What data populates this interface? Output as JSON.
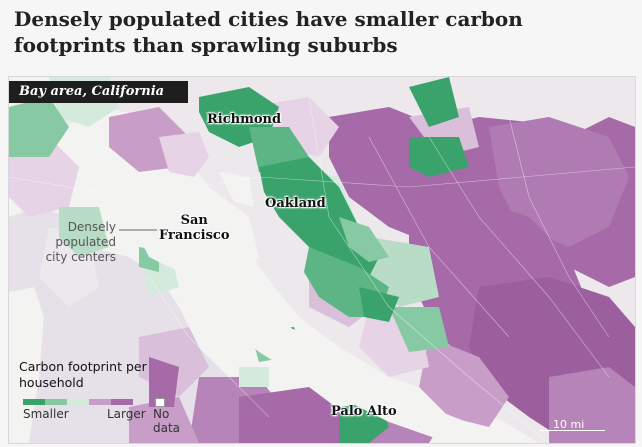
{
  "headline": "Densely populated cities have smaller carbon footprints than sprawling suburbs",
  "map": {
    "region_label": "Bay area, California",
    "cities": [
      {
        "id": "richmond",
        "name": "Richmond"
      },
      {
        "id": "oakland",
        "name": "Oakland"
      },
      {
        "id": "san-francisco",
        "name": "San\nFrancisco"
      },
      {
        "id": "palo-alto",
        "name": "Palo Alto"
      }
    ],
    "annotation": "Densely\npopulated\ncity centers",
    "scale_label": "10 mi"
  },
  "legend": {
    "title": "Carbon footprint per household",
    "low_label": "Smaller",
    "high_label": "Larger",
    "nodata_label": "No\ndata",
    "colors": [
      "#3aa36b",
      "#86c9a2",
      "#d3eadc",
      "#e6d3e6",
      "#c89dc8",
      "#a56aa7"
    ],
    "nodata_color": "#ffffff"
  }
}
